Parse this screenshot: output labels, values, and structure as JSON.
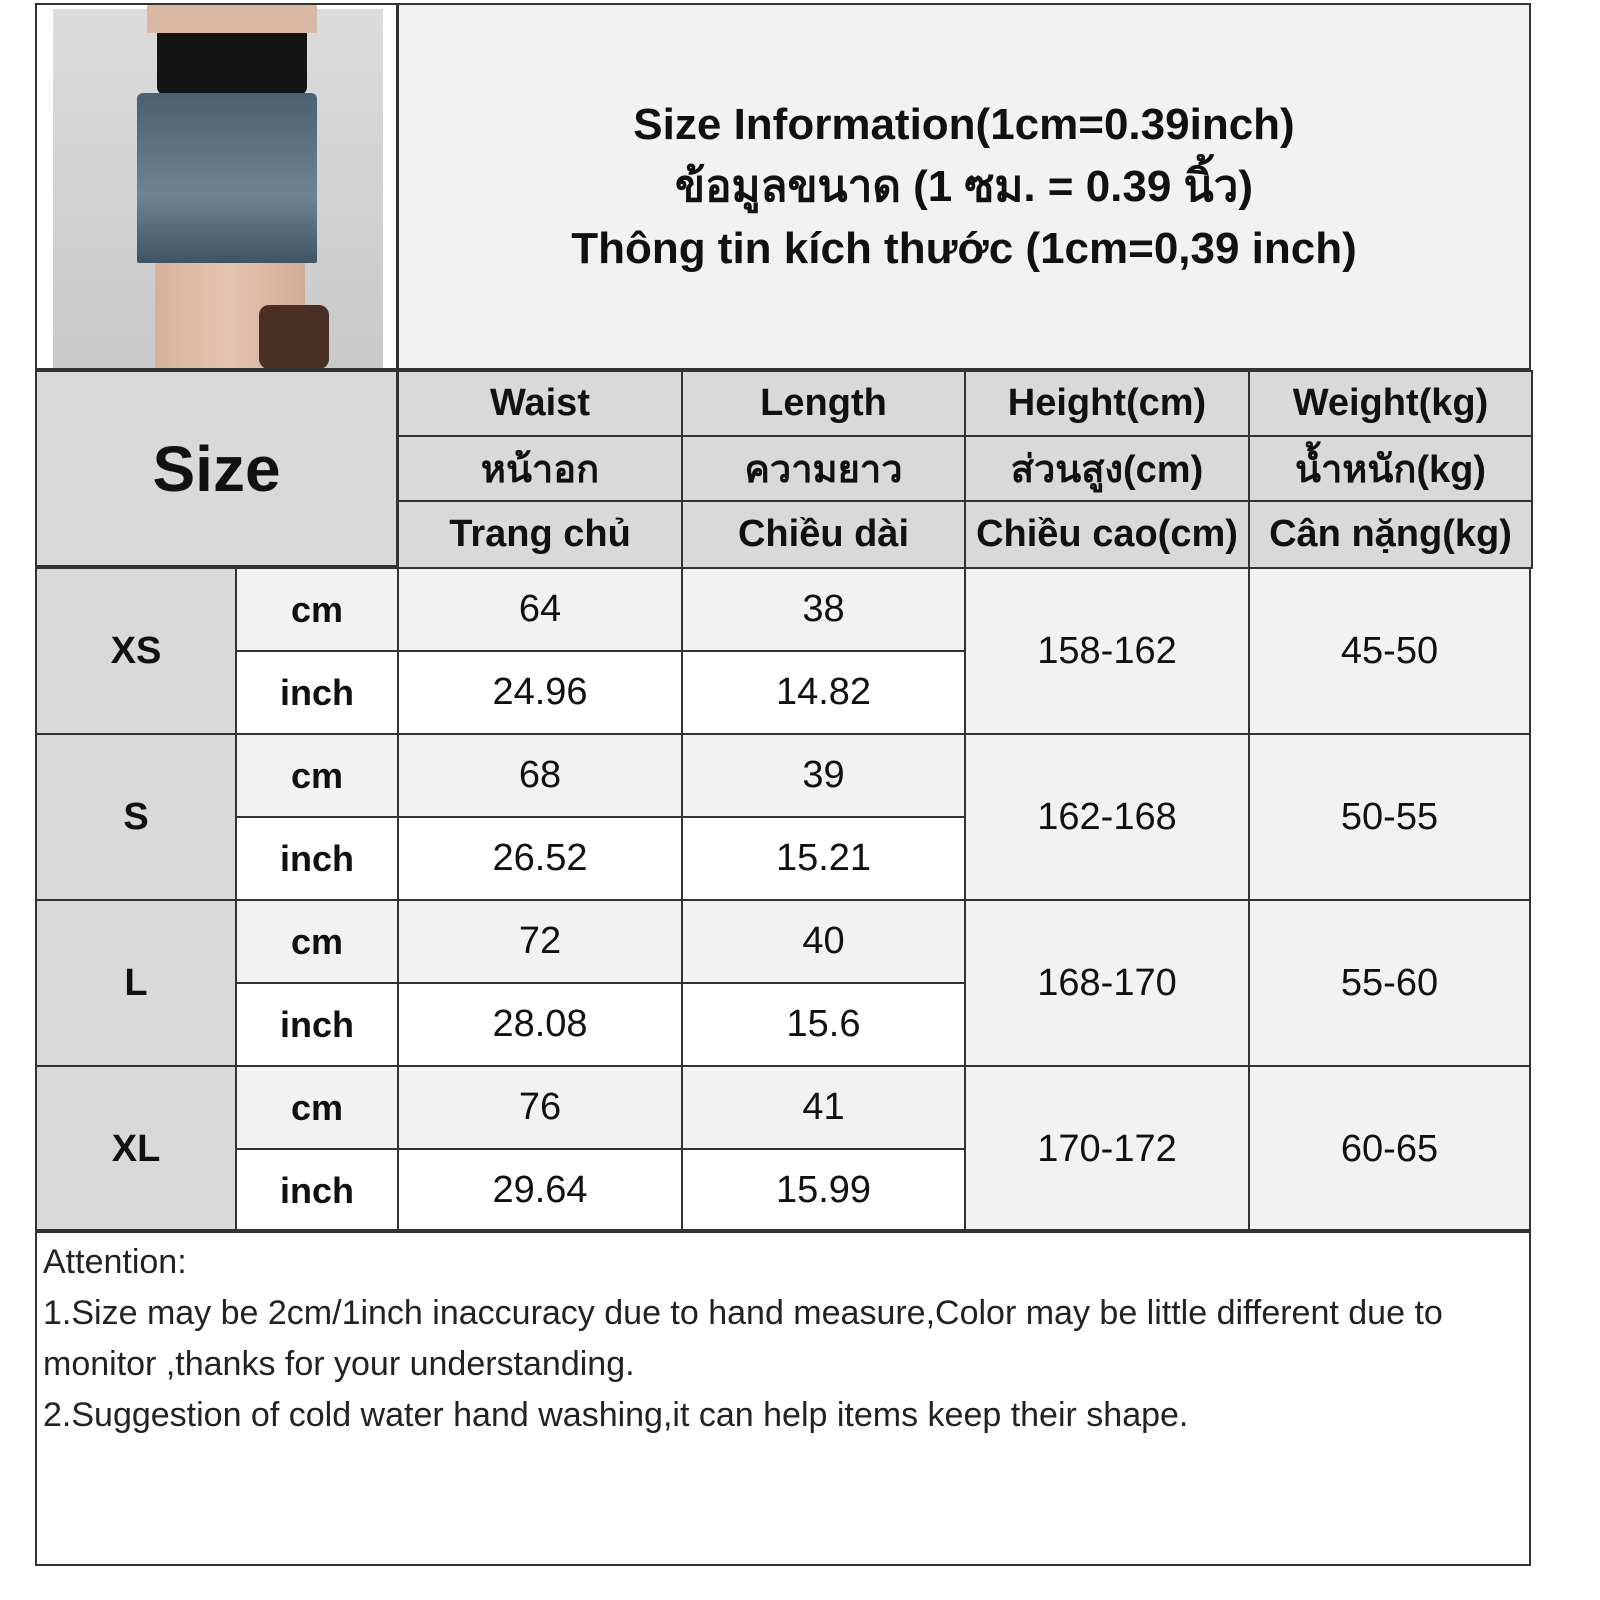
{
  "title": {
    "line1": "Size Information(1cm=0.39inch)",
    "line2": "ข้อมูลขนาด (1 ซม. = 0.39 นิ้ว)",
    "line3": "Thông tin kích thước (1cm=0,39 inch)"
  },
  "size_header": "Size",
  "columns": [
    {
      "en": "Waist",
      "th": "หน้าอก",
      "vi": "Trang chủ"
    },
    {
      "en": "Length",
      "th": "ความยาว",
      "vi": "Chiều dài"
    },
    {
      "en": "Height(cm)",
      "th": "ส่วนสูง(cm)",
      "vi": "Chiều cao(cm)"
    },
    {
      "en": "Weight(kg)",
      "th": "น้ำหนัก(kg)",
      "vi": "Cân nặng(kg)"
    }
  ],
  "units": {
    "cm": "cm",
    "inch": "inch"
  },
  "rows": [
    {
      "size": "XS",
      "cm": [
        "64",
        "38"
      ],
      "inch": [
        "24.96",
        "14.82"
      ],
      "height": "158-162",
      "weight": "45-50"
    },
    {
      "size": "S",
      "cm": [
        "68",
        "39"
      ],
      "inch": [
        "26.52",
        "15.21"
      ],
      "height": "162-168",
      "weight": "50-55"
    },
    {
      "size": "L",
      "cm": [
        "72",
        "40"
      ],
      "inch": [
        "28.08",
        "15.6"
      ],
      "height": "168-170",
      "weight": "55-60"
    },
    {
      "size": "XL",
      "cm": [
        "76",
        "41"
      ],
      "inch": [
        "29.64",
        "15.99"
      ],
      "height": "170-172",
      "weight": "60-65"
    }
  ],
  "attention": {
    "heading": "Attention:",
    "line1": "1.Size may be 2cm/1inch inaccuracy due to hand measure,Color may be little different due to monitor ,thanks for your understanding.",
    "line2": "2.Suggestion of cold water hand washing,it can help items keep their shape."
  }
}
